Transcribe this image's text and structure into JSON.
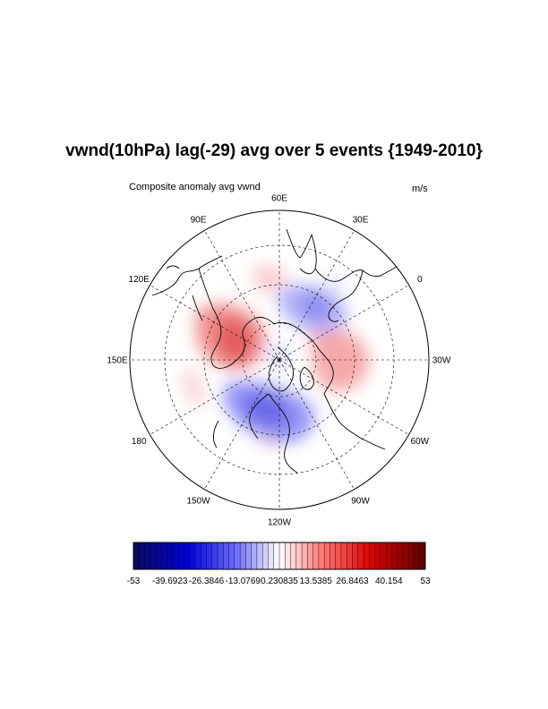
{
  "title": "vwnd(10hPa) lag(-29) avg over 5 events {1949-2010}",
  "subtitle_left": "Composite anomaly avg vwnd",
  "subtitle_right": "m/s",
  "projection": "north-polar-stereographic",
  "longitude_labels": [
    "60E",
    "30E",
    "0",
    "30W",
    "60W",
    "90W",
    "120W",
    "150W",
    "180",
    "150E",
    "120E",
    "90E"
  ],
  "colorbar": {
    "min": -53,
    "max": 53,
    "colormap": "blue-white-red",
    "labels": [
      "-53",
      "-39.6923",
      "-26.3846",
      "-13.0769",
      "0.230835",
      "13.5385",
      "26.8463",
      "40.154",
      "53"
    ]
  },
  "colors": {
    "negative": "#3030ff",
    "positive": "#e03030",
    "neutral": "#ffffff"
  }
}
